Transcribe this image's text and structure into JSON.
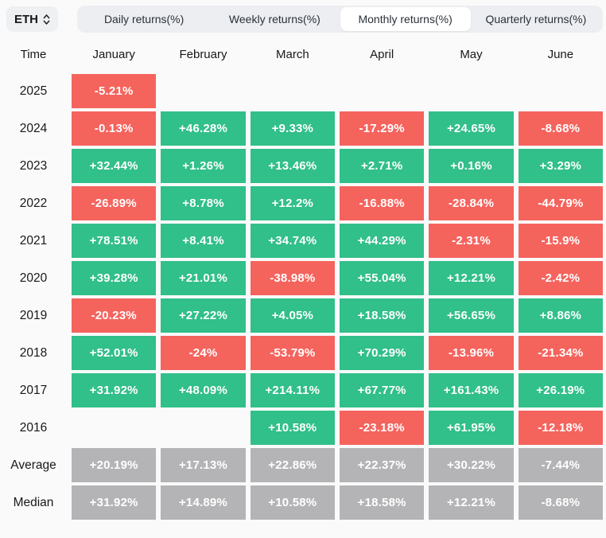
{
  "toolbar": {
    "asset_selector": {
      "label": "ETH",
      "icon": "up-down-chevron-icon"
    },
    "tabs": [
      {
        "label": "Daily returns(%)",
        "active": false
      },
      {
        "label": "Weekly returns(%)",
        "active": false
      },
      {
        "label": "Monthly returns(%)",
        "active": true
      },
      {
        "label": "Quarterly returns(%)",
        "active": false
      }
    ]
  },
  "colors": {
    "positive": "#31bf8a",
    "negative": "#f5635d",
    "neutral": "#b4b4b6",
    "active_tab_bg": "#ffffff",
    "tabbar_bg": "#eceef1"
  },
  "chart_data": {
    "type": "heatmap",
    "title": "ETH Monthly returns(%)",
    "legend_position": "none",
    "columns": [
      "Time",
      "January",
      "February",
      "March",
      "April",
      "May",
      "June"
    ],
    "rows": [
      {
        "label": "2025",
        "kind": "year",
        "values": [
          "-5.21%",
          "",
          "",
          "",
          "",
          ""
        ]
      },
      {
        "label": "2024",
        "kind": "year",
        "values": [
          "-0.13%",
          "+46.28%",
          "+9.33%",
          "-17.29%",
          "+24.65%",
          "-8.68%"
        ]
      },
      {
        "label": "2023",
        "kind": "year",
        "values": [
          "+32.44%",
          "+1.26%",
          "+13.46%",
          "+2.71%",
          "+0.16%",
          "+3.29%"
        ]
      },
      {
        "label": "2022",
        "kind": "year",
        "values": [
          "-26.89%",
          "+8.78%",
          "+12.2%",
          "-16.88%",
          "-28.84%",
          "-44.79%"
        ]
      },
      {
        "label": "2021",
        "kind": "year",
        "values": [
          "+78.51%",
          "+8.41%",
          "+34.74%",
          "+44.29%",
          "-2.31%",
          "-15.9%"
        ]
      },
      {
        "label": "2020",
        "kind": "year",
        "values": [
          "+39.28%",
          "+21.01%",
          "-38.98%",
          "+55.04%",
          "+12.21%",
          "-2.42%"
        ]
      },
      {
        "label": "2019",
        "kind": "year",
        "values": [
          "-20.23%",
          "+27.22%",
          "+4.05%",
          "+18.58%",
          "+56.65%",
          "+8.86%"
        ]
      },
      {
        "label": "2018",
        "kind": "year",
        "values": [
          "+52.01%",
          "-24%",
          "-53.79%",
          "+70.29%",
          "-13.96%",
          "-21.34%"
        ]
      },
      {
        "label": "2017",
        "kind": "year",
        "values": [
          "+31.92%",
          "+48.09%",
          "+214.11%",
          "+67.77%",
          "+161.43%",
          "+26.19%"
        ]
      },
      {
        "label": "2016",
        "kind": "year",
        "values": [
          "",
          "",
          "+10.58%",
          "-23.18%",
          "+61.95%",
          "-12.18%"
        ]
      },
      {
        "label": "Average",
        "kind": "summary",
        "values": [
          "+20.19%",
          "+17.13%",
          "+22.86%",
          "+22.37%",
          "+30.22%",
          "-7.44%"
        ]
      },
      {
        "label": "Median",
        "kind": "summary",
        "values": [
          "+31.92%",
          "+14.89%",
          "+10.58%",
          "+18.58%",
          "+12.21%",
          "-8.68%"
        ]
      }
    ]
  }
}
